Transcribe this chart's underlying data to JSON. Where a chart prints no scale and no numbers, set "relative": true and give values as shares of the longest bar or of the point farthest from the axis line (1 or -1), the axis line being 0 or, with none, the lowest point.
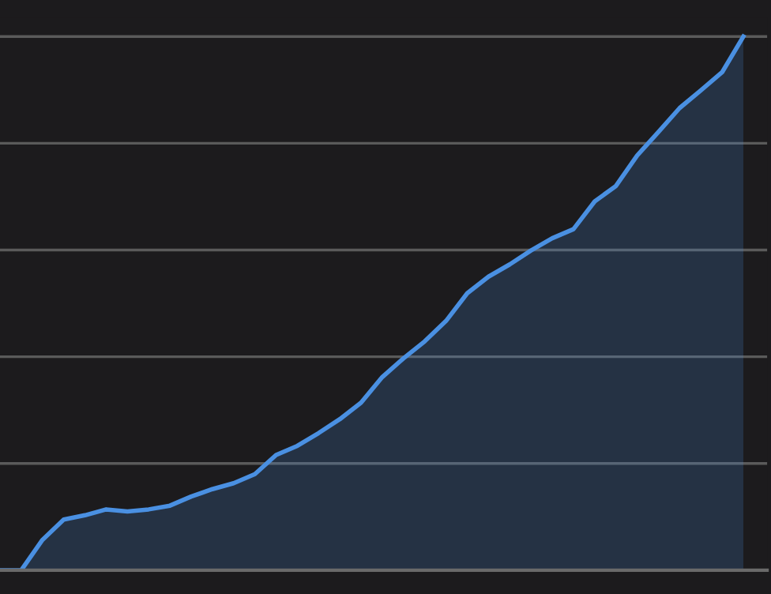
{
  "chart_data": {
    "type": "area",
    "relative": true,
    "grid": "y",
    "legend": false,
    "marker": "none",
    "line_style": "solid",
    "categories": [
      null,
      null,
      null,
      null,
      null,
      null,
      null,
      null,
      null,
      null,
      null,
      null,
      null,
      null,
      null,
      null,
      null,
      null,
      null,
      null,
      null,
      null,
      null,
      null,
      null,
      null,
      null,
      null,
      null,
      null,
      null,
      null,
      null,
      null,
      null,
      null
    ],
    "series": [
      {
        "color": "#4a90e2",
        "values": [
          0,
          0,
          0.057,
          0.095,
          0.103,
          0.114,
          0.11,
          0.114,
          0.121,
          0.138,
          0.152,
          0.163,
          0.18,
          0.216,
          0.233,
          0.257,
          0.283,
          0.314,
          0.362,
          0.397,
          0.429,
          0.467,
          0.519,
          0.55,
          0.573,
          0.599,
          0.622,
          0.639,
          0.691,
          0.72,
          0.777,
          0.821,
          0.866,
          0.899,
          0.933,
          1
        ]
      }
    ]
  }
}
